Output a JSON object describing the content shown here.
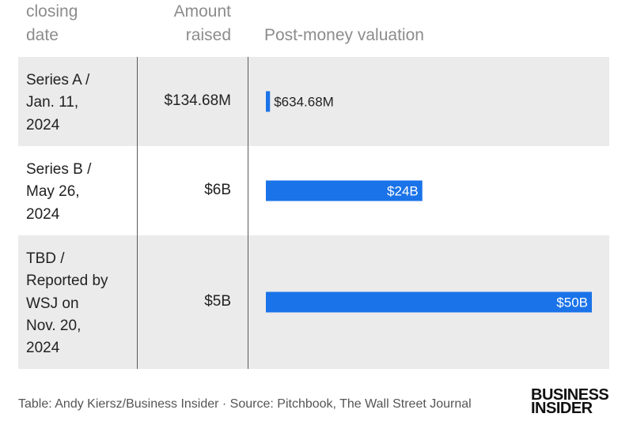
{
  "header": {
    "date_col": [
      "closing",
      "date"
    ],
    "amount_col": [
      "Amount",
      "raised"
    ],
    "valuation_col": "Post-money valuation"
  },
  "chart_data": {
    "type": "bar",
    "orientation": "horizontal",
    "title": "",
    "columns": [
      "closing date",
      "Amount raised",
      "Post-money valuation"
    ],
    "categories": [
      "Series A / Jan. 11, 2024",
      "Series B / May 26, 2024",
      "TBD / Reported by WSJ on Nov. 20, 2024"
    ],
    "amount_raised": [
      "$134.68M",
      "$6B",
      "$5B"
    ],
    "values": [
      634.68,
      24000,
      50000
    ],
    "value_unit": "$M",
    "value_labels": [
      "$634.68M",
      "$24B",
      "$50B"
    ],
    "bar_color": "#1a73e8",
    "xlim": [
      0,
      50000
    ]
  },
  "rows": [
    {
      "date_lines": [
        "Series A /",
        "Jan. 11,",
        "2024"
      ],
      "amount": "$134.68M",
      "label": "$634.68M"
    },
    {
      "date_lines": [
        "Series B /",
        "May 26,",
        "2024"
      ],
      "amount": "$6B",
      "label": "$24B"
    },
    {
      "date_lines": [
        "TBD /",
        "Reported by",
        "WSJ on",
        "Nov. 20,",
        "2024"
      ],
      "amount": "$5B",
      "label": "$50B"
    }
  ],
  "footer": {
    "credit": "Table: Andy Kiersz/Business Insider · Source: Pitchbook, The Wall Street Journal"
  },
  "logo": [
    "BUSINESS",
    "INSIDER"
  ],
  "colors": {
    "bar": "#1a73e8",
    "row_shade": "#ebebeb",
    "header_text": "#8c8c8c"
  }
}
